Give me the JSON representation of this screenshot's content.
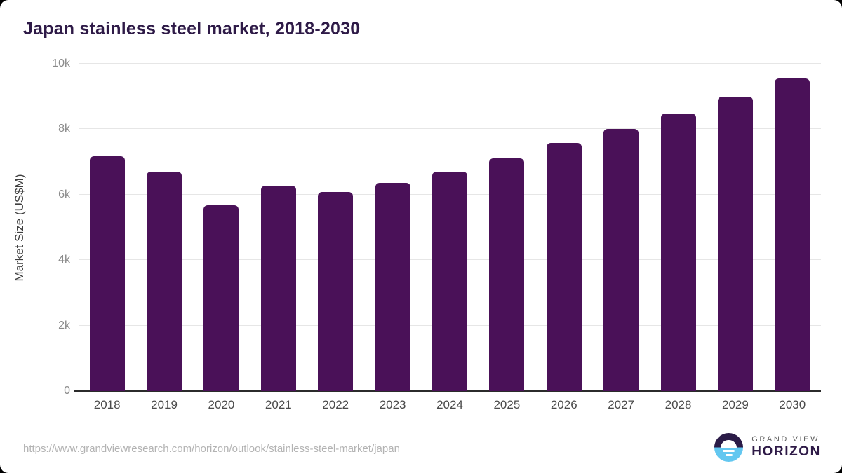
{
  "chart_data": {
    "type": "bar",
    "title": "Japan stainless steel market, 2018-2030",
    "xlabel": "",
    "ylabel": "Market Size (US$M)",
    "categories": [
      "2018",
      "2019",
      "2020",
      "2021",
      "2022",
      "2023",
      "2024",
      "2025",
      "2026",
      "2027",
      "2028",
      "2029",
      "2030"
    ],
    "values": [
      7170,
      6710,
      5680,
      6280,
      6080,
      6370,
      6710,
      7120,
      7570,
      8000,
      8470,
      8990,
      9550
    ],
    "ylim": [
      0,
      10000
    ],
    "ytick_values": [
      0,
      2000,
      4000,
      6000,
      8000,
      10000
    ],
    "ytick_labels": [
      "0",
      "2k",
      "4k",
      "6k",
      "8k",
      "10k"
    ],
    "grid": "horizontal",
    "legend": "none",
    "bar_color": "#4a1158"
  },
  "footer": {
    "source_url": "https://www.grandviewresearch.com/horizon/outlook/stainless-steel-market/japan",
    "logo_line1": "GRAND VIEW",
    "logo_line2": "HORIZON"
  },
  "colors": {
    "title": "#2e1a47",
    "bar": "#4a1158",
    "gridline": "#e6e6e6",
    "axis_line": "#2b2b2b",
    "tick_label": "#8a8a8a",
    "x_label": "#4a4a4a",
    "url_text": "#b3b3b3",
    "logo_blue": "#63c7f0",
    "logo_dark": "#2b1b47"
  }
}
